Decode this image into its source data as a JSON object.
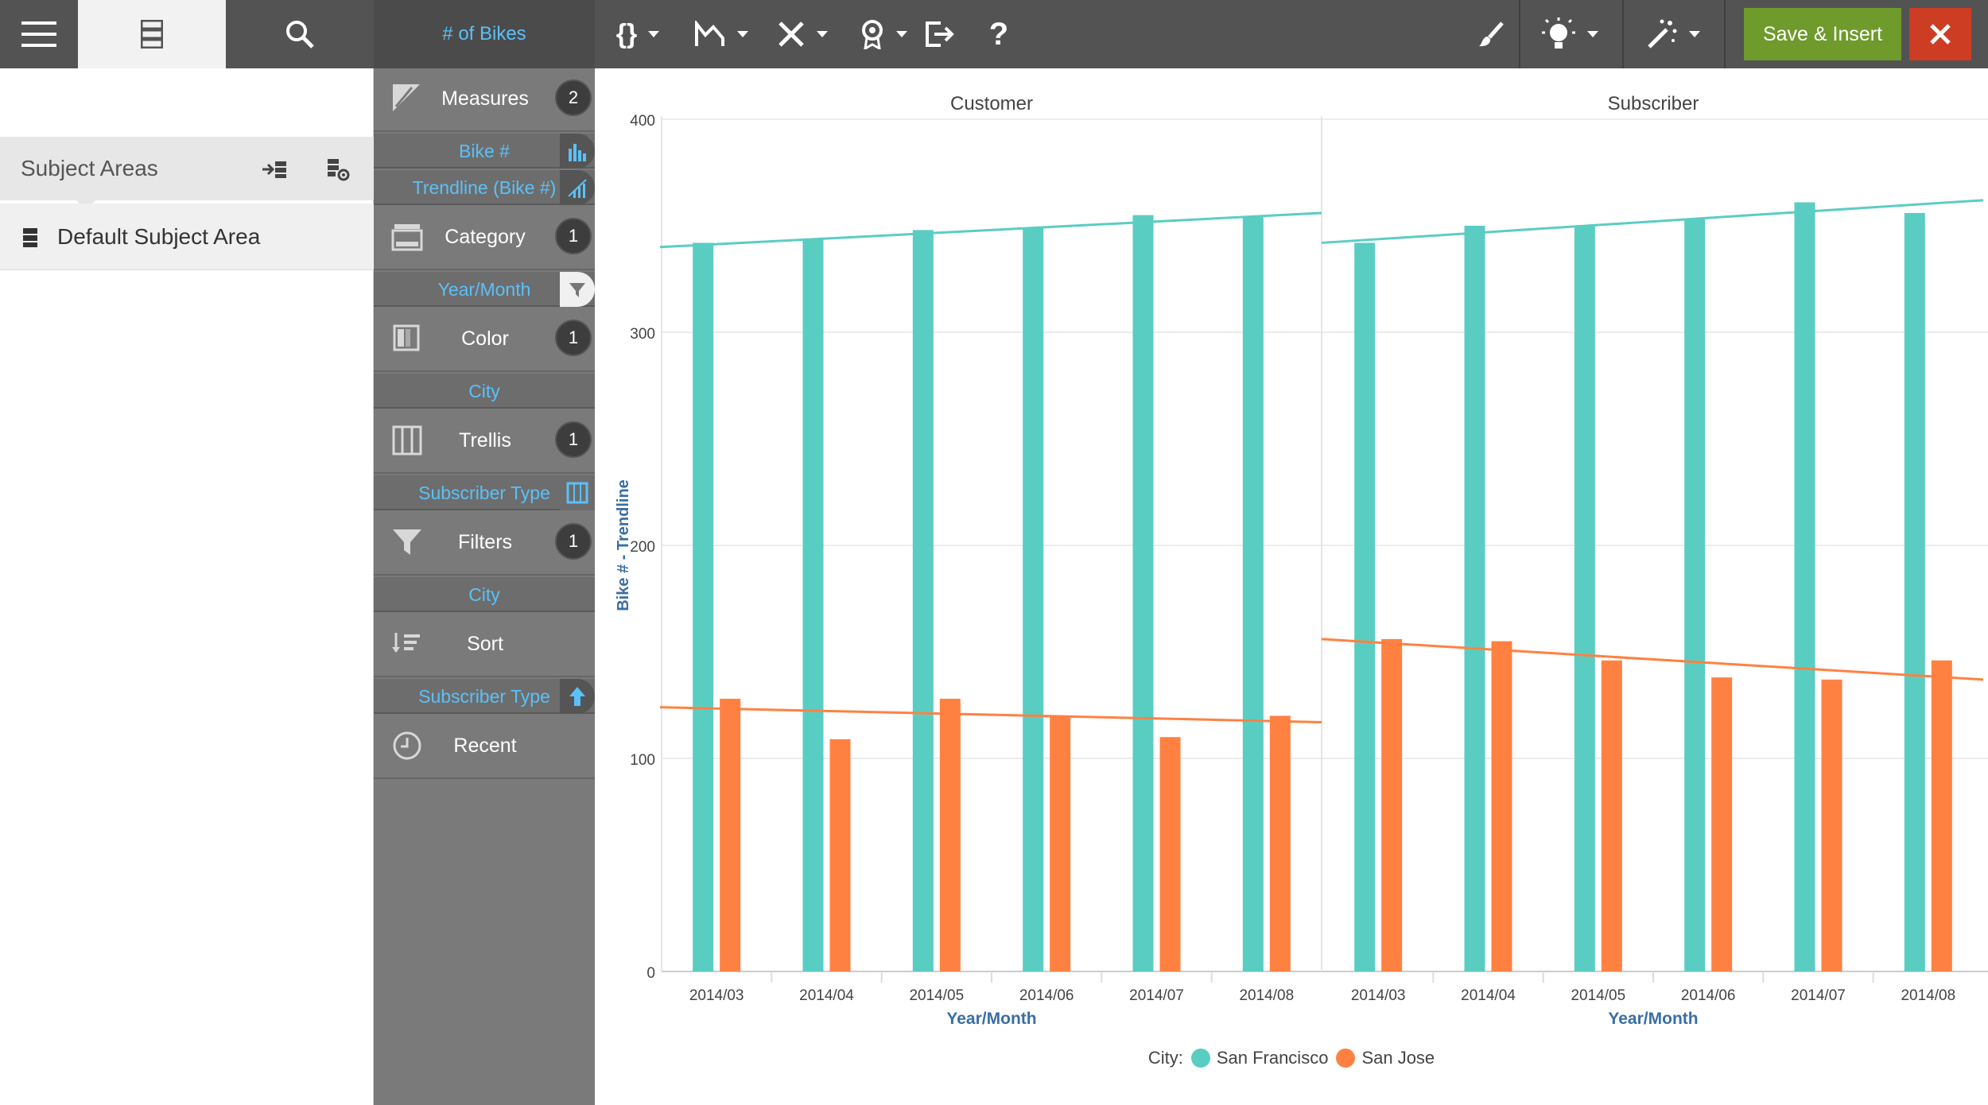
{
  "toolbar": {
    "title": "# of Bikes",
    "save_label": "Save & Insert",
    "colors": {
      "bg": "#535353",
      "save": "#6f9a2c",
      "close": "#cc3d23",
      "accent": "#5bc0f8"
    },
    "icons": [
      "braces-icon",
      "chart-type-icon",
      "tools-icon",
      "badge-icon",
      "export-icon",
      "help-icon",
      "brush-icon",
      "lightbulb-icon",
      "magic-wand-icon",
      "close-icon"
    ]
  },
  "left_panel": {
    "header_label": "Subject Areas",
    "subject_area": "Default Subject Area"
  },
  "grammar": {
    "sections": [
      {
        "key": "measures",
        "label": "Measures",
        "count": "2",
        "items": [
          "Bike #",
          "Trendline (Bike #)"
        ]
      },
      {
        "key": "category",
        "label": "Category",
        "count": "1",
        "items": [
          "Year/Month"
        ]
      },
      {
        "key": "color",
        "label": "Color",
        "count": "1",
        "items": [
          "City"
        ]
      },
      {
        "key": "trellis",
        "label": "Trellis",
        "count": "1",
        "items": [
          "Subscriber Type"
        ]
      },
      {
        "key": "filters",
        "label": "Filters",
        "count": "1",
        "items": [
          "City"
        ]
      },
      {
        "key": "sort",
        "label": "Sort",
        "count": "",
        "items": [
          "Subscriber Type"
        ]
      },
      {
        "key": "recent",
        "label": "Recent",
        "count": "",
        "items": []
      }
    ]
  },
  "legend": {
    "label": "City:",
    "items": [
      {
        "name": "San Francisco",
        "color": "#5acdc3"
      },
      {
        "name": "San Jose",
        "color": "#ff8142"
      }
    ]
  },
  "chart_data": {
    "type": "bar",
    "ylabel": "Bike # - Trendline",
    "xlabel": "Year/Month",
    "ylim": [
      0,
      400
    ],
    "yticks": [
      0,
      100,
      200,
      300,
      400
    ],
    "categories": [
      "2014/03",
      "2014/04",
      "2014/05",
      "2014/06",
      "2014/07",
      "2014/08"
    ],
    "grid": true,
    "legend_position": "bottom-center",
    "panels": [
      {
        "title": "Customer",
        "series": [
          {
            "name": "San Francisco",
            "color": "#5acdc3",
            "values": [
              342,
              344,
              348,
              349,
              355,
              354
            ]
          },
          {
            "name": "San Jose",
            "color": "#ff8142",
            "values": [
              128,
              109,
              128,
              120,
              110,
              120
            ]
          }
        ],
        "trendlines": [
          {
            "series": "San Francisco",
            "color": "#5acdc3",
            "start": 340,
            "end": 356
          },
          {
            "series": "San Jose",
            "color": "#ff8142",
            "start": 124,
            "end": 117
          }
        ]
      },
      {
        "title": "Subscriber",
        "series": [
          {
            "name": "San Francisco",
            "color": "#5acdc3",
            "values": [
              342,
              350,
              350,
              353,
              361,
              356
            ]
          },
          {
            "name": "San Jose",
            "color": "#ff8142",
            "values": [
              156,
              155,
              146,
              138,
              137,
              146
            ]
          }
        ],
        "trendlines": [
          {
            "series": "San Francisco",
            "color": "#5acdc3",
            "start": 342,
            "end": 362
          },
          {
            "series": "San Jose",
            "color": "#ff8142",
            "start": 156,
            "end": 137
          }
        ]
      }
    ]
  }
}
